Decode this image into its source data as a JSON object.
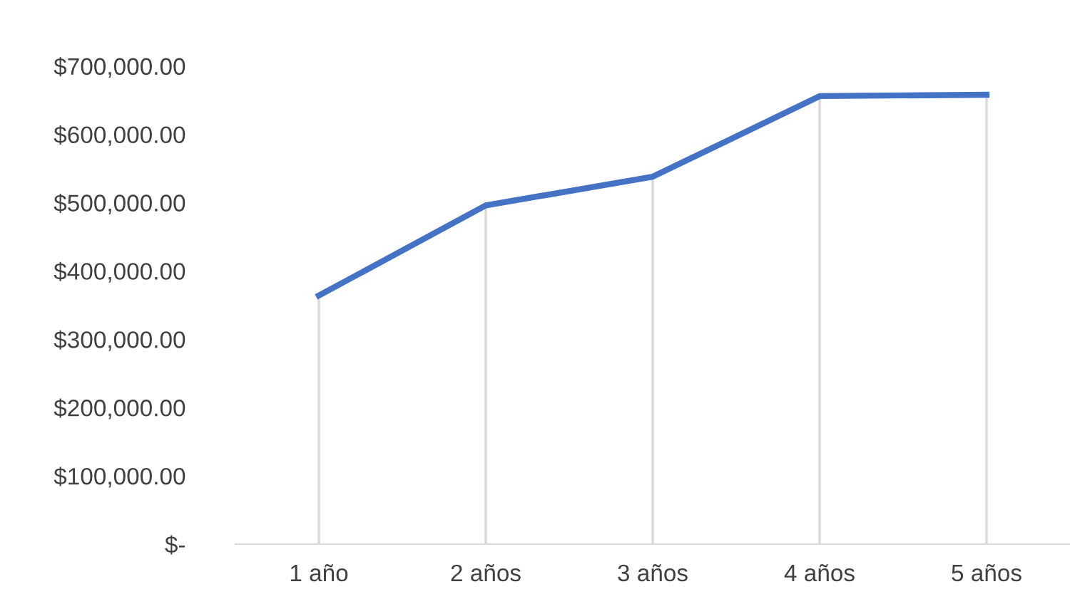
{
  "chart_data": {
    "type": "line",
    "categories": [
      "1 año",
      "2 años",
      "3 años",
      "4 años",
      "5 años"
    ],
    "series": [
      {
        "color": "#4472c4",
        "values": [
          364000,
          496000,
          538000,
          656000,
          658000
        ]
      }
    ],
    "grid": "x",
    "ylim": [
      0,
      700000
    ],
    "yticks": [
      {
        "value": 0,
        "label": "$-"
      },
      {
        "value": 100000,
        "label": "$100,000.00"
      },
      {
        "value": 200000,
        "label": "$200,000.00"
      },
      {
        "value": 300000,
        "label": "$300,000.00"
      },
      {
        "value": 400000,
        "label": "$400,000.00"
      },
      {
        "value": 500000,
        "label": "$500,000.00"
      },
      {
        "value": 600000,
        "label": "$600,000.00"
      },
      {
        "value": 700000,
        "label": "$700,000.00"
      }
    ],
    "legend": false,
    "marker": "none",
    "line_style": "solid"
  }
}
